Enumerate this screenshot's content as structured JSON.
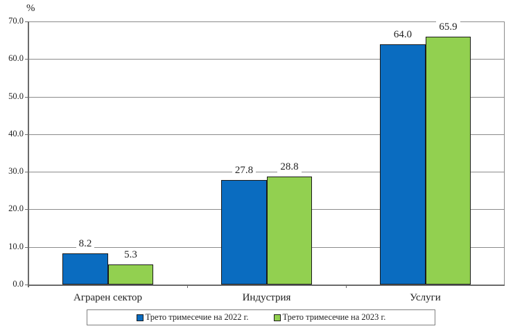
{
  "chart_data": {
    "type": "bar",
    "title": "",
    "xlabel": "",
    "ylabel": "%",
    "ylim": [
      0,
      70
    ],
    "yticks": [
      "0.0",
      "10.0",
      "20.0",
      "30.0",
      "40.0",
      "50.0",
      "60.0",
      "70.0"
    ],
    "grid": true,
    "legend_position": "bottom",
    "categories": [
      "Аграрен сектор",
      "Индустрия",
      "Услуги"
    ],
    "series": [
      {
        "name": "Трето тримесечие на 2022 г.",
        "color": "#0a6cc0",
        "values": [
          8.2,
          27.8,
          64.0
        ],
        "labels": [
          "8.2",
          "27.8",
          "64.0"
        ]
      },
      {
        "name": "Трето тримесечие на 2023 г.",
        "color": "#92d050",
        "values": [
          5.3,
          28.8,
          65.9
        ],
        "labels": [
          "5.3",
          "28.8",
          "65.9"
        ]
      }
    ]
  }
}
